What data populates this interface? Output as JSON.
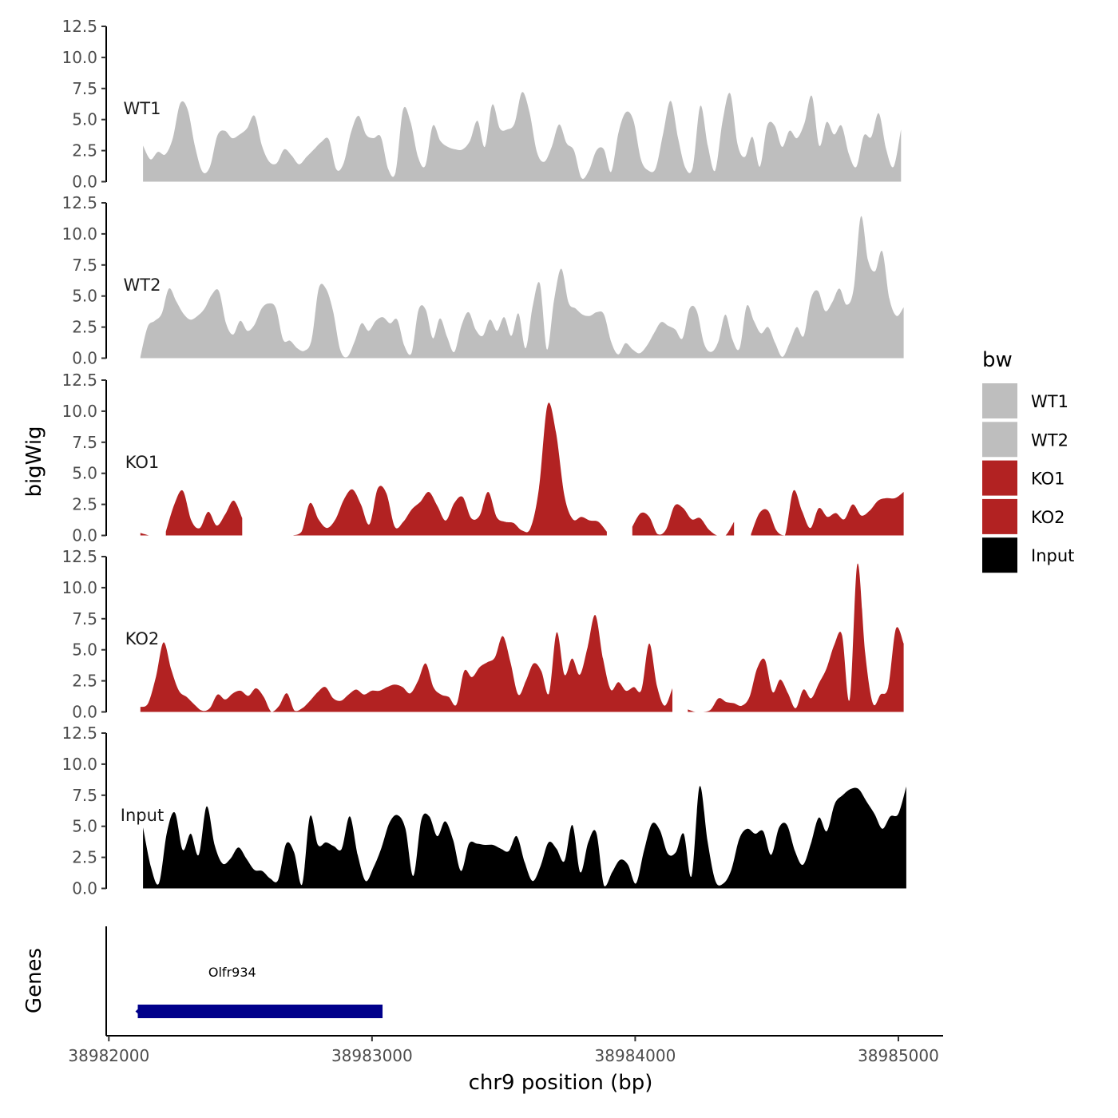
{
  "chart_data": {
    "type": "area",
    "title": "",
    "xlabel": "chr9 position (bp)",
    "ylabel": "bigWig",
    "genes_label": "Genes",
    "xlim": [
      38981990,
      38985170
    ],
    "x_ticks": [
      38982000,
      38983000,
      38984000,
      38985000
    ],
    "x_tick_labels": [
      "38982000",
      "38983000",
      "38984000",
      "38985000"
    ],
    "ylim": [
      0,
      12.5
    ],
    "y_ticks": [
      0,
      2.5,
      5,
      7.5,
      10,
      12.5
    ],
    "y_tick_labels": [
      "0.0",
      "2.5",
      "5.0",
      "7.5",
      "10.0",
      "12.5"
    ],
    "legend": {
      "title": "bw",
      "position": "right",
      "entries": [
        {
          "label": "WT1",
          "color": "#bebebe"
        },
        {
          "label": "WT2",
          "color": "#bebebe"
        },
        {
          "label": "KO1",
          "color": "#b22222"
        },
        {
          "label": "KO2",
          "color": "#b22222"
        },
        {
          "label": "Input",
          "color": "#000000"
        }
      ]
    },
    "series": [
      {
        "name": "WT1",
        "color": "#bebebe",
        "x_start": 38982130,
        "x_end": 38985010,
        "values": [
          2.9,
          1.8,
          2.4,
          2.2,
          3.5,
          6.3,
          5.8,
          2.8,
          0.8,
          1.2,
          3.7,
          4.1,
          3.5,
          3.8,
          4.3,
          5.3,
          2.9,
          1.6,
          1.5,
          2.6,
          2.1,
          1.4,
          2.0,
          2.6,
          3.2,
          3.4,
          1.0,
          1.5,
          4.0,
          5.3,
          3.8,
          3.5,
          3.6,
          1.0,
          0.8,
          5.8,
          4.8,
          2.0,
          1.3,
          4.5,
          3.3,
          2.8,
          2.6,
          2.6,
          3.3,
          4.9,
          2.8,
          6.2,
          4.3,
          4.2,
          4.7,
          7.2,
          5.6,
          2.4,
          1.6,
          2.8,
          4.6,
          3.1,
          2.5,
          0.3,
          0.9,
          2.5,
          2.6,
          0.8,
          4.0,
          5.6,
          4.9,
          1.8,
          0.9,
          1.1,
          3.9,
          6.5,
          3.5,
          1.1,
          1.2,
          6.1,
          2.9,
          0.9,
          4.9,
          7.1,
          3.0,
          2.0,
          3.6,
          1.2,
          4.5,
          4.5,
          2.8,
          4.1,
          3.5,
          4.7,
          6.9,
          2.9,
          4.8,
          3.8,
          4.5,
          2.2,
          1.2,
          3.7,
          3.6,
          5.5,
          2.6,
          1.2,
          4.2
        ],
        "gaps": []
      },
      {
        "name": "WT2",
        "color": "#bebebe",
        "x_start": 38982120,
        "x_end": 38985020,
        "values": [
          0.1,
          2.5,
          3.0,
          3.6,
          5.6,
          4.6,
          3.6,
          3.1,
          3.4,
          4.0,
          5.1,
          5.4,
          2.8,
          1.9,
          3.0,
          2.2,
          2.7,
          4.0,
          4.4,
          4.0,
          1.5,
          1.4,
          0.8,
          0.6,
          1.5,
          5.6,
          5.6,
          3.8,
          0.7,
          0.1,
          1.3,
          2.8,
          2.2,
          3.0,
          3.3,
          2.8,
          3.1,
          1.0,
          0.4,
          3.9,
          3.9,
          1.6,
          3.2,
          1.7,
          0.5,
          2.6,
          3.7,
          2.3,
          1.8,
          3.1,
          2.2,
          3.3,
          1.8,
          3.6,
          0.8,
          4.2,
          6.0,
          0.7,
          4.7,
          7.2,
          4.5,
          4.0,
          3.5,
          3.4,
          3.7,
          3.5,
          1.3,
          0.3,
          1.2,
          0.7,
          0.4,
          1.0,
          2.0,
          2.9,
          2.6,
          2.3,
          1.6,
          4.0,
          3.8,
          1.2,
          0.5,
          1.3,
          3.5,
          1.5,
          0.8,
          4.2,
          3.0,
          2.0,
          2.5,
          1.2,
          0.1,
          1.2,
          2.5,
          1.8,
          4.8,
          5.4,
          3.8,
          4.5,
          5.6,
          4.3,
          5.6,
          11.4,
          7.9,
          7.0,
          8.6,
          4.8,
          3.4,
          4.1
        ],
        "gaps": []
      },
      {
        "name": "KO1",
        "color": "#b22222",
        "x_start": 38982120,
        "x_end": 38985020,
        "values": [
          0.2,
          0.0,
          0.0,
          0.3,
          2.5,
          3.6,
          1.2,
          0.6,
          1.9,
          0.8,
          1.7,
          2.8,
          1.4,
          0.0,
          0.0,
          0.0,
          0.0,
          0.0,
          0.0,
          0.3,
          2.6,
          1.3,
          0.6,
          1.3,
          2.9,
          3.7,
          2.5,
          0.9,
          3.8,
          3.4,
          0.7,
          1.1,
          2.1,
          2.7,
          3.5,
          2.4,
          1.2,
          2.6,
          3.1,
          1.4,
          1.6,
          3.5,
          1.5,
          1.1,
          1.0,
          0.4,
          0.6,
          3.8,
          10.5,
          8.3,
          3.2,
          1.3,
          1.5,
          1.2,
          1.1,
          0.3,
          0.0,
          0.0,
          0.7,
          1.8,
          1.5,
          0.1,
          0.5,
          2.4,
          2.2,
          1.3,
          1.4,
          0.5,
          0.0,
          0.0,
          1.1,
          2.1,
          0.1,
          1.8,
          2.0,
          0.4,
          0.0,
          3.6,
          2.0,
          0.6,
          2.2,
          1.5,
          1.8,
          1.3,
          2.5,
          1.6,
          2.0,
          2.8,
          3.0,
          3.0,
          3.5
        ],
        "gaps": [
          [
            38982180,
            38982200
          ],
          [
            38982510,
            38982690
          ],
          [
            38983920,
            38983960
          ],
          [
            38984390,
            38984410
          ],
          [
            38984570,
            38984590
          ]
        ]
      },
      {
        "name": "KO2",
        "color": "#b22222",
        "x_start": 38982120,
        "x_end": 38985020,
        "values": [
          0.4,
          0.7,
          2.8,
          5.6,
          3.4,
          1.7,
          1.2,
          0.6,
          0.1,
          0.3,
          1.4,
          1.0,
          1.5,
          1.7,
          1.3,
          1.9,
          1.2,
          0.0,
          0.5,
          1.5,
          0.1,
          0.3,
          0.9,
          1.6,
          2.0,
          1.1,
          0.9,
          1.4,
          1.8,
          1.4,
          1.7,
          1.7,
          2.0,
          2.2,
          2.0,
          1.5,
          2.5,
          3.9,
          2.0,
          1.4,
          1.2,
          0.6,
          3.3,
          2.8,
          3.6,
          4.0,
          4.4,
          6.1,
          4.0,
          1.4,
          2.5,
          3.9,
          3.3,
          1.5,
          6.4,
          3.0,
          4.3,
          3.0,
          5.2,
          7.8,
          4.3,
          1.8,
          2.4,
          1.7,
          2.0,
          1.8,
          5.5,
          2.1,
          0.5,
          1.9,
          1.9,
          0.2,
          0.0,
          0.0,
          0.2,
          1.1,
          0.8,
          0.7,
          0.5,
          1.2,
          3.5,
          4.2,
          1.6,
          2.6,
          1.5,
          0.3,
          1.8,
          1.1,
          2.3,
          3.5,
          5.4,
          6.2,
          1.0,
          11.9,
          4.8,
          0.7,
          1.4,
          2.0,
          6.7,
          5.5
        ],
        "gaps": [
          [
            38984150,
            38984180
          ]
        ]
      },
      {
        "name": "Input",
        "color": "#000000",
        "x_start": 38982130,
        "x_end": 38985030,
        "values": [
          4.9,
          1.7,
          0.4,
          4.5,
          6.1,
          3.1,
          4.4,
          2.7,
          6.6,
          3.5,
          2.0,
          2.4,
          3.3,
          2.4,
          1.5,
          1.4,
          0.8,
          0.7,
          3.6,
          2.9,
          0.3,
          5.8,
          3.5,
          3.7,
          3.4,
          3.2,
          5.8,
          2.7,
          0.6,
          1.7,
          3.3,
          5.3,
          5.9,
          4.8,
          1.0,
          5.5,
          5.8,
          4.2,
          5.4,
          3.9,
          1.4,
          3.6,
          3.6,
          3.5,
          3.5,
          3.2,
          3.0,
          4.2,
          2.1,
          0.6,
          1.8,
          3.7,
          3.2,
          2.2,
          5.1,
          1.3,
          3.7,
          4.5,
          0.2,
          1.3,
          2.3,
          1.9,
          0.4,
          3.0,
          5.2,
          4.7,
          2.8,
          2.9,
          4.4,
          1.0,
          8.2,
          3.8,
          0.6,
          0.4,
          1.5,
          4.0,
          4.8,
          4.4,
          4.6,
          2.7,
          4.9,
          5.1,
          3.0,
          1.9,
          3.6,
          5.7,
          4.6,
          6.8,
          7.5,
          8.0,
          8.0,
          7.0,
          6.0,
          4.8,
          5.8,
          6.0,
          8.2
        ],
        "gaps": []
      }
    ],
    "genes": [
      {
        "name": "Olfr934",
        "start": 38982110,
        "end": 38983040,
        "strand": "-",
        "color": "#00008b"
      }
    ]
  }
}
